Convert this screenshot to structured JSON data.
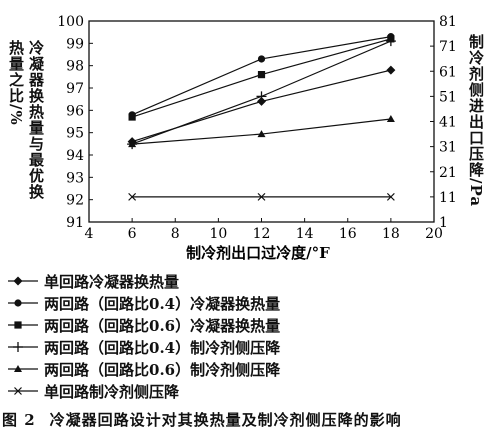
{
  "chart_data": {
    "type": "line",
    "xlabel": "制冷剂出口过冷度/°F",
    "ylabel_left": "冷凝器换热量与最优换热量之比/%",
    "ylabel_right": "制冷剂侧进出口压降/Pa",
    "xlim": [
      4,
      20
    ],
    "x_ticks": [
      "4",
      "6",
      "8",
      "10",
      "12",
      "14",
      "16",
      "18",
      "20"
    ],
    "ylim_left": [
      91,
      100
    ],
    "y_left_ticks": [
      "91",
      "92",
      "93",
      "94",
      "95",
      "96",
      "97",
      "98",
      "99",
      "100"
    ],
    "ylim_right": [
      1,
      81
    ],
    "y_right_ticks": [
      "1",
      "11",
      "21",
      "31",
      "41",
      "51",
      "61",
      "71",
      "81"
    ],
    "x": [
      6,
      12,
      18
    ],
    "series": [
      {
        "name": "单回路冷凝器换热量",
        "axis": "left",
        "marker": "diamond",
        "values": [
          94.6,
          96.4,
          97.8
        ]
      },
      {
        "name": "两回路（回路比0.4）冷凝器换热量",
        "axis": "left",
        "marker": "circle",
        "values": [
          95.8,
          98.3,
          99.3
        ]
      },
      {
        "name": "两回路（回路比0.6）冷凝器换热量",
        "axis": "left",
        "marker": "square",
        "values": [
          95.7,
          97.6,
          99.2
        ]
      },
      {
        "name": "两回路（回路比0.4）制冷剂侧压降",
        "axis": "right",
        "marker": "plus",
        "values": [
          32,
          51,
          73
        ]
      },
      {
        "name": "两回路（回路比0.6）制冷剂侧压降",
        "axis": "right",
        "marker": "triangle",
        "values": [
          32,
          36,
          42
        ]
      },
      {
        "name": "单回路制冷剂侧压降",
        "axis": "right",
        "marker": "x",
        "values": [
          11,
          11,
          11
        ]
      }
    ]
  },
  "caption": {
    "number": "图 2",
    "text": "冷凝器回路设计对其换热量及制冷剂侧压降的影响"
  }
}
